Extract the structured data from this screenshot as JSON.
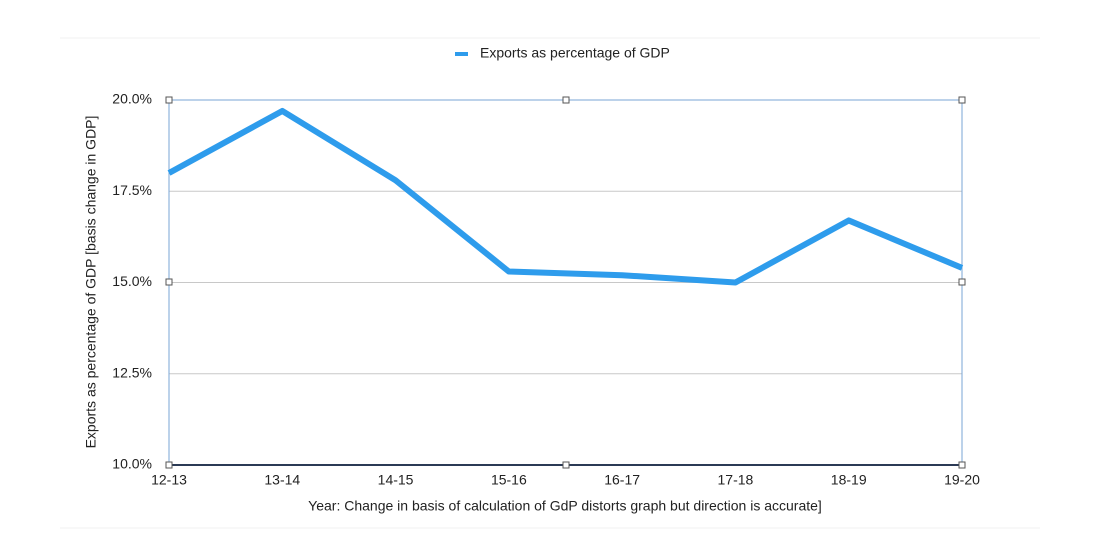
{
  "chart_data": {
    "type": "line",
    "categories": [
      "12-13",
      "13-14",
      "14-15",
      "15-16",
      "16-17",
      "17-18",
      "18-19",
      "19-20"
    ],
    "series": [
      {
        "name": "Exports as percentage of GDP",
        "color": "#2e9cec",
        "values": [
          18.0,
          19.7,
          17.8,
          15.3,
          15.2,
          15.0,
          16.7,
          15.4
        ]
      }
    ],
    "ylim": [
      10,
      20
    ],
    "yticks": [
      {
        "value": 10,
        "label": "10.0%"
      },
      {
        "value": 12.5,
        "label": "12.5%"
      },
      {
        "value": 15,
        "label": "15.0%"
      },
      {
        "value": 17.5,
        "label": "17.5%"
      },
      {
        "value": 20,
        "label": "20.0%"
      }
    ],
    "y_label": "Exports as percentage of GDP [basis change in GDP]",
    "x_label": "Year:  Change in basis of calculation of GdP distorts graph but direction is accurate]",
    "grid": true,
    "legend": "top"
  }
}
